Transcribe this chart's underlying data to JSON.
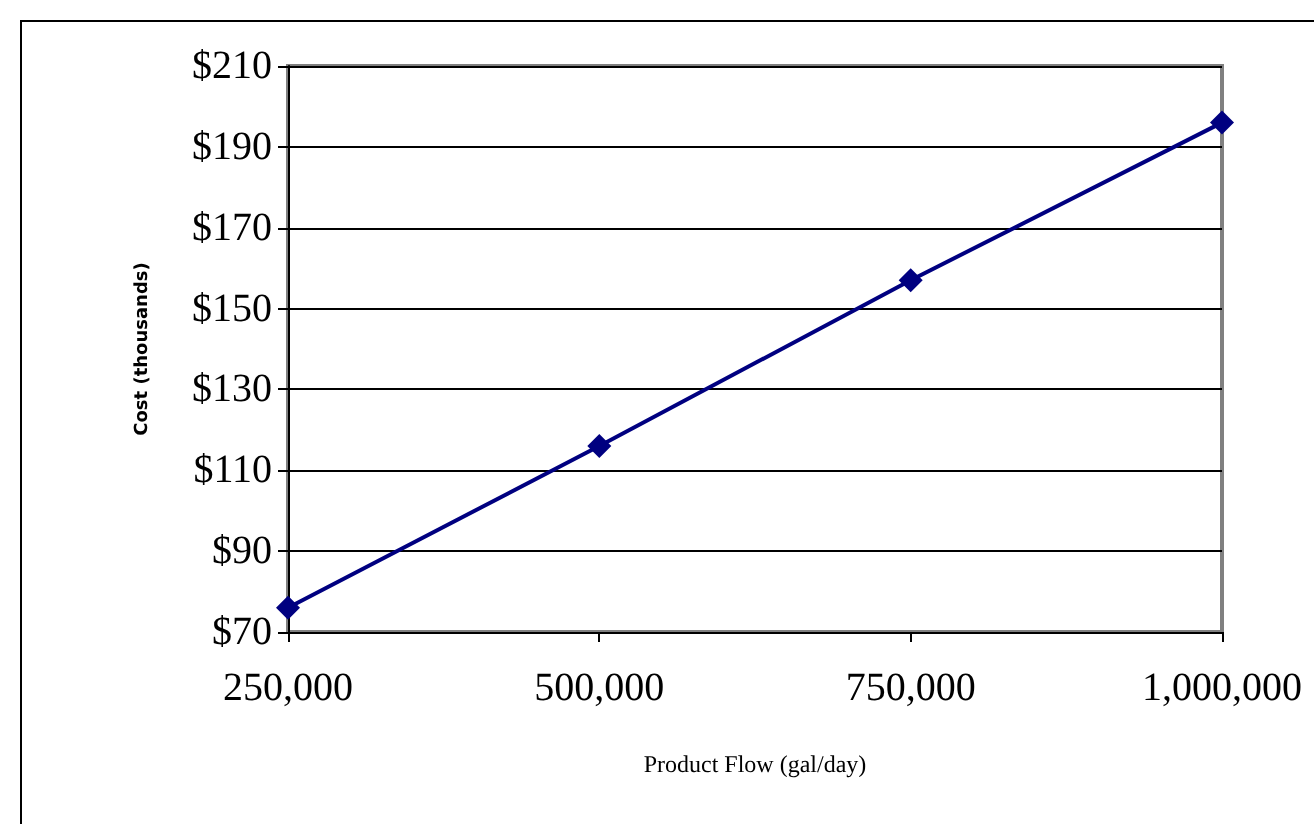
{
  "chart_data": {
    "type": "line",
    "xlabel": "Product Flow (gal/day)",
    "ylabel": "Cost (thousands)",
    "x": [
      250000,
      500000,
      750000,
      1000000
    ],
    "series": [
      {
        "color": "#000080",
        "values": [
          76,
          116,
          157,
          196
        ]
      }
    ],
    "xlim": [
      250000,
      1000000
    ],
    "xticks": [
      {
        "value": 250000,
        "label": "250,000"
      },
      {
        "value": 500000,
        "label": "500,000"
      },
      {
        "value": 750000,
        "label": "750,000"
      },
      {
        "value": 1000000,
        "label": "1,000,000"
      }
    ],
    "ylim": [
      70,
      210
    ],
    "yticks": [
      {
        "value": 70,
        "label": "$70"
      },
      {
        "value": 90,
        "label": "$90"
      },
      {
        "value": 110,
        "label": "$110"
      },
      {
        "value": 130,
        "label": "$130"
      },
      {
        "value": 150,
        "label": "$150"
      },
      {
        "value": 170,
        "label": "$170"
      },
      {
        "value": 190,
        "label": "$190"
      },
      {
        "value": 210,
        "label": "$210"
      }
    ],
    "grid": "y",
    "marker": "diamond",
    "line_style": "solid"
  }
}
